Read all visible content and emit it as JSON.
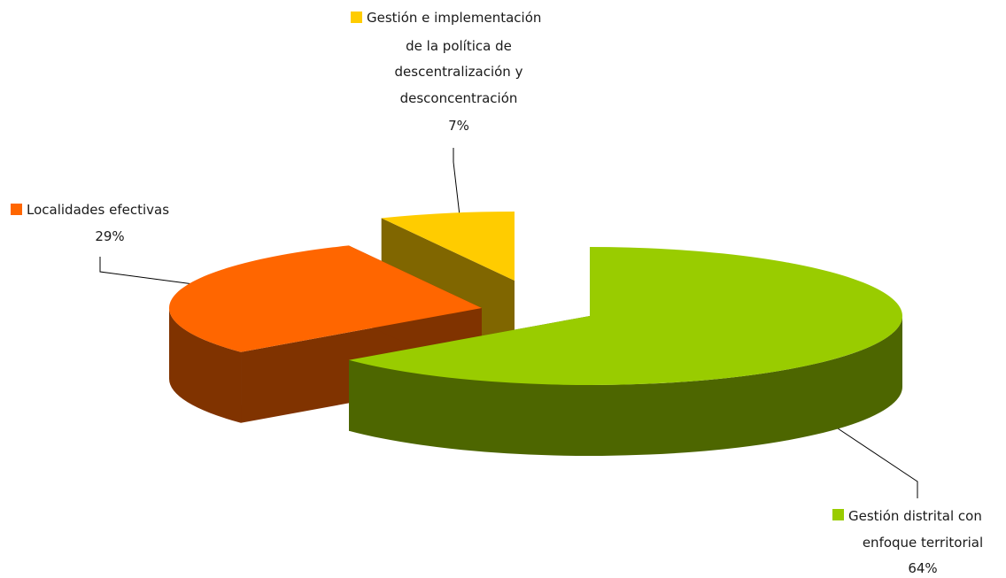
{
  "chart_data": {
    "type": "pie",
    "variant": "3d-exploded",
    "title": "",
    "legend": "none",
    "slices": [
      {
        "name": "Gestión distrital con enfoque territorial",
        "label_lines": [
          "Gestión distrital con",
          "enfoque territorial"
        ],
        "value": 64,
        "value_label": "64%",
        "color": "#99CC00",
        "side_color": "#4D6600"
      },
      {
        "name": "Localidades efectivas",
        "label_lines": [
          "Localidades efectivas"
        ],
        "value": 29,
        "value_label": "29%",
        "color": "#FF6600",
        "side_color": "#803300"
      },
      {
        "name": "Gestión e implementación de la política de descentralización y desconcentración",
        "label_lines": [
          "Gestión e implementación",
          "de la política de",
          "descentralización y",
          "desconcentración"
        ],
        "value": 7,
        "value_label": "7%",
        "color": "#FFCC00",
        "side_color": "#806600"
      }
    ]
  }
}
